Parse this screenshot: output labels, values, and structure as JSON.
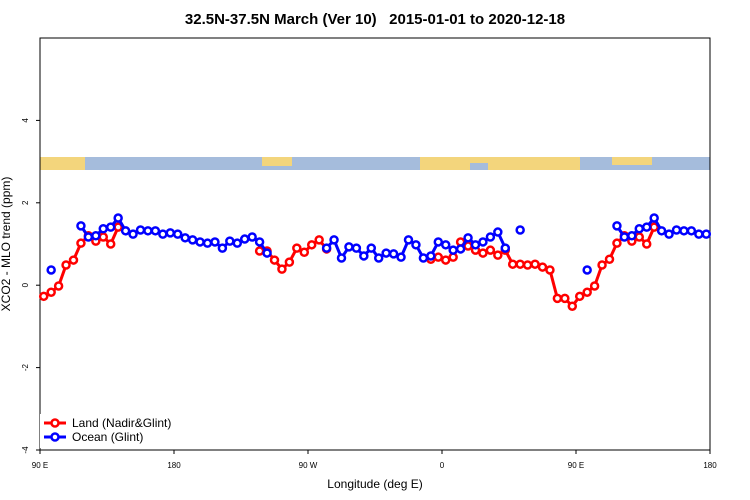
{
  "chart_data": {
    "type": "line",
    "title": "32.5N-37.5N March (Ver 10)   2015-01-01 to 2020-12-18",
    "x_label": "Longitude (deg E)",
    "y_label": "XCO2 - MLO trend (ppm)",
    "xlim": [
      90,
      540
    ],
    "ylim": [
      -4,
      6
    ],
    "xticks": [
      {
        "value": 90,
        "label": "90 E"
      },
      180,
      {
        "value": 270,
        "label": "90 W"
      },
      {
        "value": 360,
        "label": "0"
      },
      {
        "value": 450,
        "label": "90 E"
      },
      {
        "value": 540,
        "label": "180"
      }
    ],
    "yticks": [
      -4,
      -2,
      0,
      2,
      4
    ],
    "legend": "bottom-left",
    "series": [
      {
        "name": "Land (Nadir&Glint)",
        "color": "#ff0000",
        "x": [
          92.5,
          97.5,
          102.5,
          107.5,
          112.5,
          117.5,
          122.5,
          127.5,
          132.5,
          137.5,
          142.5,
          147.5,
          237.5,
          242.5,
          247.5,
          252.5,
          257.5,
          262.5,
          267.5,
          272.5,
          277.5,
          282.5,
          287.5,
          352.5,
          357.5,
          362.5,
          367.5,
          372.5,
          377.5,
          382.5,
          387.5,
          392.5,
          397.5,
          402.5,
          407.5,
          412.5,
          417.5,
          422.5,
          427.5,
          432.5,
          437.5,
          442.5,
          447.5,
          452.5,
          457.5,
          462.5,
          467.5,
          472.5,
          477.5,
          482.5,
          487.5,
          492.5,
          497.5,
          502.5
        ],
        "values": [
          -0.27,
          -0.17,
          -0.02,
          0.49,
          0.61,
          1.02,
          1.2,
          1.07,
          1.17,
          1.0,
          1.41,
          null,
          0.83,
          0.83,
          0.61,
          0.39,
          0.56,
          0.9,
          0.8,
          0.98,
          1.1,
          0.88,
          null,
          0.63,
          0.68,
          0.61,
          0.68,
          1.05,
          0.95,
          0.85,
          0.78,
          0.85,
          0.73,
          0.85,
          0.51,
          0.51,
          0.49,
          0.51,
          0.44,
          0.37,
          -0.32,
          -0.32,
          -0.51,
          -0.27,
          -0.17,
          -0.02,
          0.49,
          0.63,
          1.02,
          1.2,
          1.07,
          1.17,
          1.0,
          1.41
        ]
      },
      {
        "name": "Ocean (Glint)",
        "color": "#0000ff",
        "x": [
          97.5,
          102.5,
          117.5,
          122.5,
          127.5,
          132.5,
          137.5,
          142.5,
          147.5,
          152.5,
          157.5,
          162.5,
          167.5,
          172.5,
          177.5,
          182.5,
          187.5,
          192.5,
          197.5,
          202.5,
          207.5,
          212.5,
          217.5,
          222.5,
          227.5,
          232.5,
          237.5,
          242.5,
          247.5,
          282.5,
          287.5,
          292.5,
          297.5,
          302.5,
          307.5,
          312.5,
          317.5,
          322.5,
          327.5,
          332.5,
          337.5,
          342.5,
          347.5,
          352.5,
          357.5,
          362.5,
          367.5,
          372.5,
          377.5,
          382.5,
          387.5,
          392.5,
          397.5,
          402.5,
          407.5,
          412.5,
          417.5,
          457.5,
          462.5,
          477.5,
          482.5,
          487.5,
          492.5,
          497.5,
          502.5,
          507.5,
          512.5,
          517.5,
          522.5,
          527.5,
          532.5,
          537.5
        ],
        "values": [
          0.37,
          null,
          1.44,
          1.17,
          1.2,
          1.37,
          1.41,
          1.63,
          1.32,
          1.24,
          1.34,
          1.32,
          1.32,
          1.24,
          1.27,
          1.24,
          1.15,
          1.1,
          1.05,
          1.02,
          1.05,
          0.9,
          1.07,
          1.02,
          1.12,
          1.17,
          1.05,
          0.78,
          null,
          0.9,
          1.1,
          0.66,
          0.93,
          0.9,
          0.71,
          0.9,
          0.66,
          0.78,
          0.76,
          0.68,
          1.1,
          0.98,
          0.66,
          0.71,
          1.05,
          0.98,
          0.85,
          0.88,
          1.15,
          0.98,
          1.05,
          1.17,
          1.29,
          0.9,
          null,
          1.34,
          null,
          0.37,
          null,
          1.44,
          1.17,
          1.2,
          1.37,
          1.41,
          1.63,
          1.32,
          1.24,
          1.34,
          1.32,
          1.32,
          1.24,
          1.24
        ]
      }
    ]
  }
}
